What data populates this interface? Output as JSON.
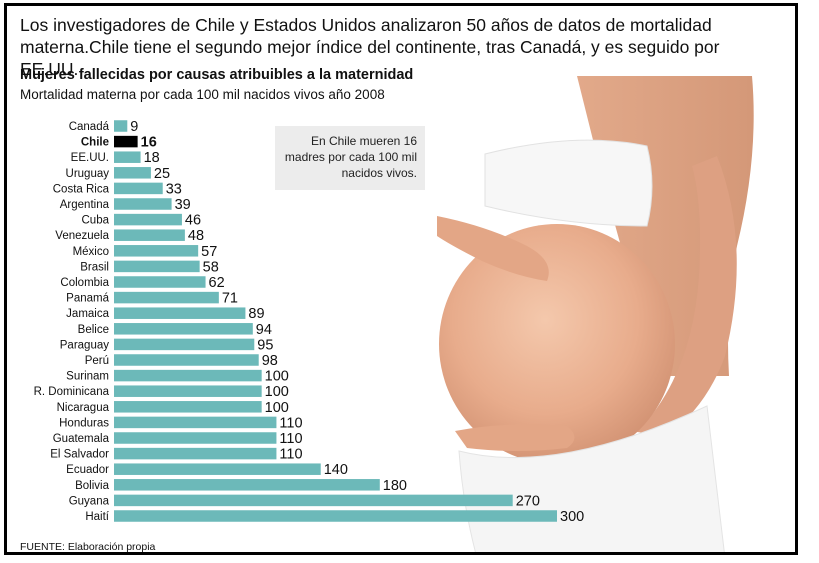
{
  "headline": "Los investigadores de Chile y Estados Unidos analizaron 50 años de datos de mortalidad materna.Chile tiene el segundo mejor índice del continente, tras Canadá, y es seguido por EE.UU.",
  "callout": "En Chile mueren 16 madres por cada 100 mil nacidos vivos.",
  "source": "FUENTE: Elaboración propia",
  "colors": {
    "bar": "#6cb9b9",
    "highlight": "#000000",
    "text": "#111111"
  },
  "chart_data": {
    "type": "bar",
    "orientation": "horizontal",
    "title": "Mujeres fallecidas por causas atribuibles a la maternidad",
    "subtitle": "Mortalidad materna por cada 100 mil nacidos vivos año 2008",
    "categories": [
      "Canadá",
      "Chile",
      "EE.UU.",
      "Uruguay",
      "Costa Rica",
      "Argentina",
      "Cuba",
      "Venezuela",
      "México",
      "Brasil",
      "Colombia",
      "Panamá",
      "Jamaica",
      "Belice",
      "Paraguay",
      "Perú",
      "Surinam",
      "R. Dominicana",
      "Nicaragua",
      "Honduras",
      "Guatemala",
      "El Salvador",
      "Ecuador",
      "Bolivia",
      "Guyana",
      "Haití"
    ],
    "values": [
      9,
      16,
      18,
      25,
      33,
      39,
      46,
      48,
      57,
      58,
      62,
      71,
      89,
      94,
      95,
      98,
      100,
      100,
      100,
      110,
      110,
      110,
      140,
      180,
      270,
      300
    ],
    "highlight": "Chile",
    "xlim": [
      0,
      300
    ],
    "grid": false,
    "legend": "none"
  }
}
